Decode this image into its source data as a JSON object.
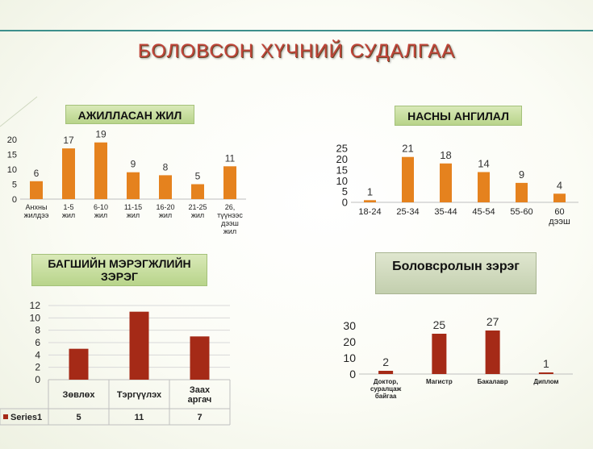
{
  "title": "БОЛОВСОН ХҮЧНИЙ СУДАЛГАА",
  "colors": {
    "accent": "#e5821e",
    "dark_red": "#a52a17",
    "teal": "#3d8f8c"
  },
  "chart_data": [
    {
      "type": "bar",
      "title": "АЖИЛЛАСАН ЖИЛ",
      "categories": [
        [
          "Анхны",
          "жилдээ"
        ],
        [
          "1-5",
          "жил"
        ],
        [
          "6-10",
          "жил"
        ],
        [
          "11-15",
          "жил"
        ],
        [
          "16-20",
          "жил"
        ],
        [
          "21-25",
          "жил"
        ],
        [
          "26,",
          "түүнээс",
          "дээш",
          "жил"
        ]
      ],
      "values": [
        6,
        17,
        19,
        9,
        8,
        5,
        11
      ],
      "yticks": [
        0,
        5,
        10,
        15,
        20
      ],
      "ylim": [
        0,
        20
      ],
      "color": "#e5821e"
    },
    {
      "type": "bar",
      "title": "НАСНЫ АНГИЛАЛ",
      "categories": [
        [
          "18-24"
        ],
        [
          "25-34"
        ],
        [
          "35-44"
        ],
        [
          "45-54"
        ],
        [
          "55-60"
        ],
        [
          "60",
          "дээш"
        ]
      ],
      "values": [
        1,
        21,
        18,
        14,
        9,
        4
      ],
      "yticks": [
        0,
        5,
        10,
        15,
        20,
        25
      ],
      "ylim": [
        0,
        25
      ],
      "color": "#e5821e"
    },
    {
      "type": "bar",
      "title": "БАГШИЙН МЭРЭГЖЛИЙН ЗЭРЭГ",
      "categories": [
        [
          "Зөвлөх"
        ],
        [
          "Тэргүүлэх"
        ],
        [
          "Заах",
          "аргач"
        ]
      ],
      "series": [
        {
          "name": "Series1",
          "values": [
            5,
            11,
            7
          ]
        }
      ],
      "yticks": [
        0,
        2,
        4,
        6,
        8,
        10,
        12
      ],
      "ylim": [
        0,
        12
      ],
      "color": "#a52a17"
    },
    {
      "type": "bar",
      "title": "Боловсролын зэрэг",
      "categories": [
        [
          "Доктор,",
          "суралцаж",
          "байгаа"
        ],
        [
          "Магистр"
        ],
        [
          "Бакалавр"
        ],
        [
          "Диплом"
        ]
      ],
      "values": [
        2,
        25,
        27,
        1
      ],
      "yticks": [
        0,
        10,
        20,
        30
      ],
      "ylim": [
        0,
        30
      ],
      "color": "#a52a17"
    }
  ]
}
